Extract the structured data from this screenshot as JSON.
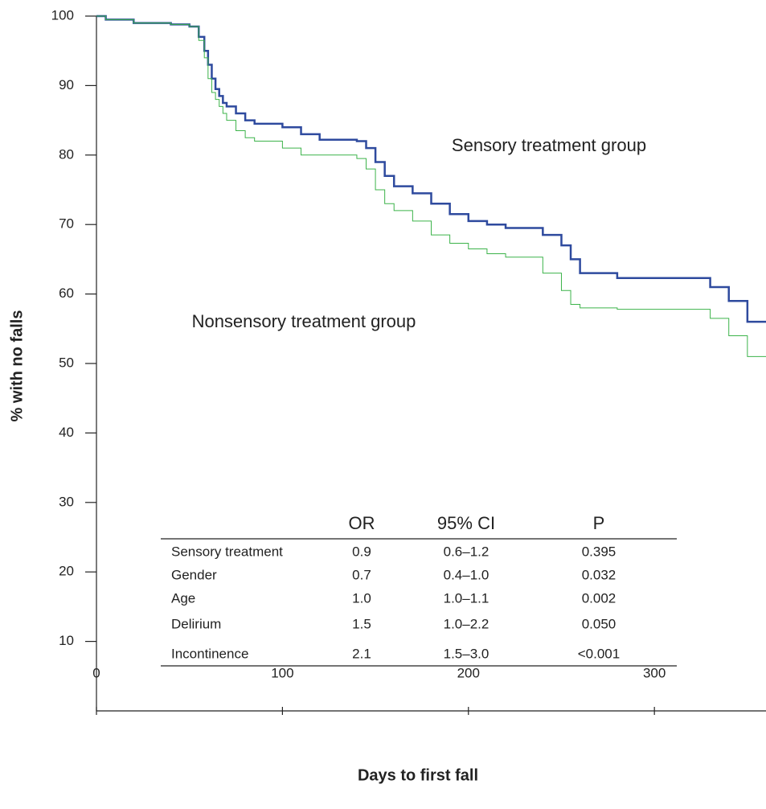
{
  "chart_data": {
    "type": "step",
    "xlabel": "Days to first fall",
    "ylabel": "% with no falls",
    "xlim": [
      0,
      360
    ],
    "ylim": [
      0,
      100
    ],
    "xticks": [
      0,
      100,
      200,
      300
    ],
    "yticks": [
      10,
      20,
      30,
      40,
      50,
      60,
      70,
      80,
      90,
      100
    ],
    "x": [
      0,
      5,
      20,
      40,
      50,
      55,
      58,
      60,
      62,
      64,
      66,
      68,
      70,
      75,
      80,
      85,
      100,
      110,
      120,
      140,
      145,
      150,
      155,
      160,
      170,
      180,
      190,
      200,
      210,
      220,
      240,
      250,
      255,
      260,
      280,
      320,
      330,
      340,
      350,
      360
    ],
    "series": [
      {
        "name": "Sensory treatment group",
        "color": "#2e4a9e",
        "width": 2.5,
        "values": [
          100,
          99.5,
          99,
          98.8,
          98.5,
          97,
          95,
          93,
          91,
          89.5,
          88.5,
          87.5,
          87,
          86,
          85,
          84.5,
          84,
          83,
          82.2,
          82,
          81,
          79,
          77,
          75.5,
          74.5,
          73,
          71.5,
          70.5,
          70,
          69.5,
          68.5,
          67,
          65,
          63,
          62.3,
          62.3,
          61,
          59,
          56,
          56
        ]
      },
      {
        "name": "Nonsensory treatment group",
        "color": "#3cb34a",
        "width": 1,
        "values": [
          100,
          99.5,
          99,
          98.8,
          98.5,
          96.5,
          94,
          91,
          89,
          88,
          87,
          86,
          85,
          83.5,
          82.5,
          82,
          81,
          80,
          80,
          79.5,
          78,
          75,
          73,
          72,
          70.5,
          68.5,
          67.3,
          66.5,
          65.8,
          65.3,
          63,
          60.5,
          58.5,
          58,
          57.8,
          57.8,
          56.5,
          54,
          51,
          51
        ]
      }
    ],
    "table": {
      "header": [
        "OR",
        "95% CI",
        "P"
      ],
      "rows": [
        [
          "Sensory treatment",
          "0.9",
          "0.6–1.2",
          "0.395"
        ],
        [
          "Gender",
          "0.7",
          "0.4–1.0",
          "0.032"
        ],
        [
          "Age",
          "1.0",
          "1.0–1.1",
          "0.002"
        ],
        [
          "Delirium",
          "1.5",
          "1.0–2.2",
          "0.050"
        ],
        [
          "Incontinence",
          "2.1",
          "1.5–3.0",
          "<0.001"
        ]
      ]
    }
  }
}
